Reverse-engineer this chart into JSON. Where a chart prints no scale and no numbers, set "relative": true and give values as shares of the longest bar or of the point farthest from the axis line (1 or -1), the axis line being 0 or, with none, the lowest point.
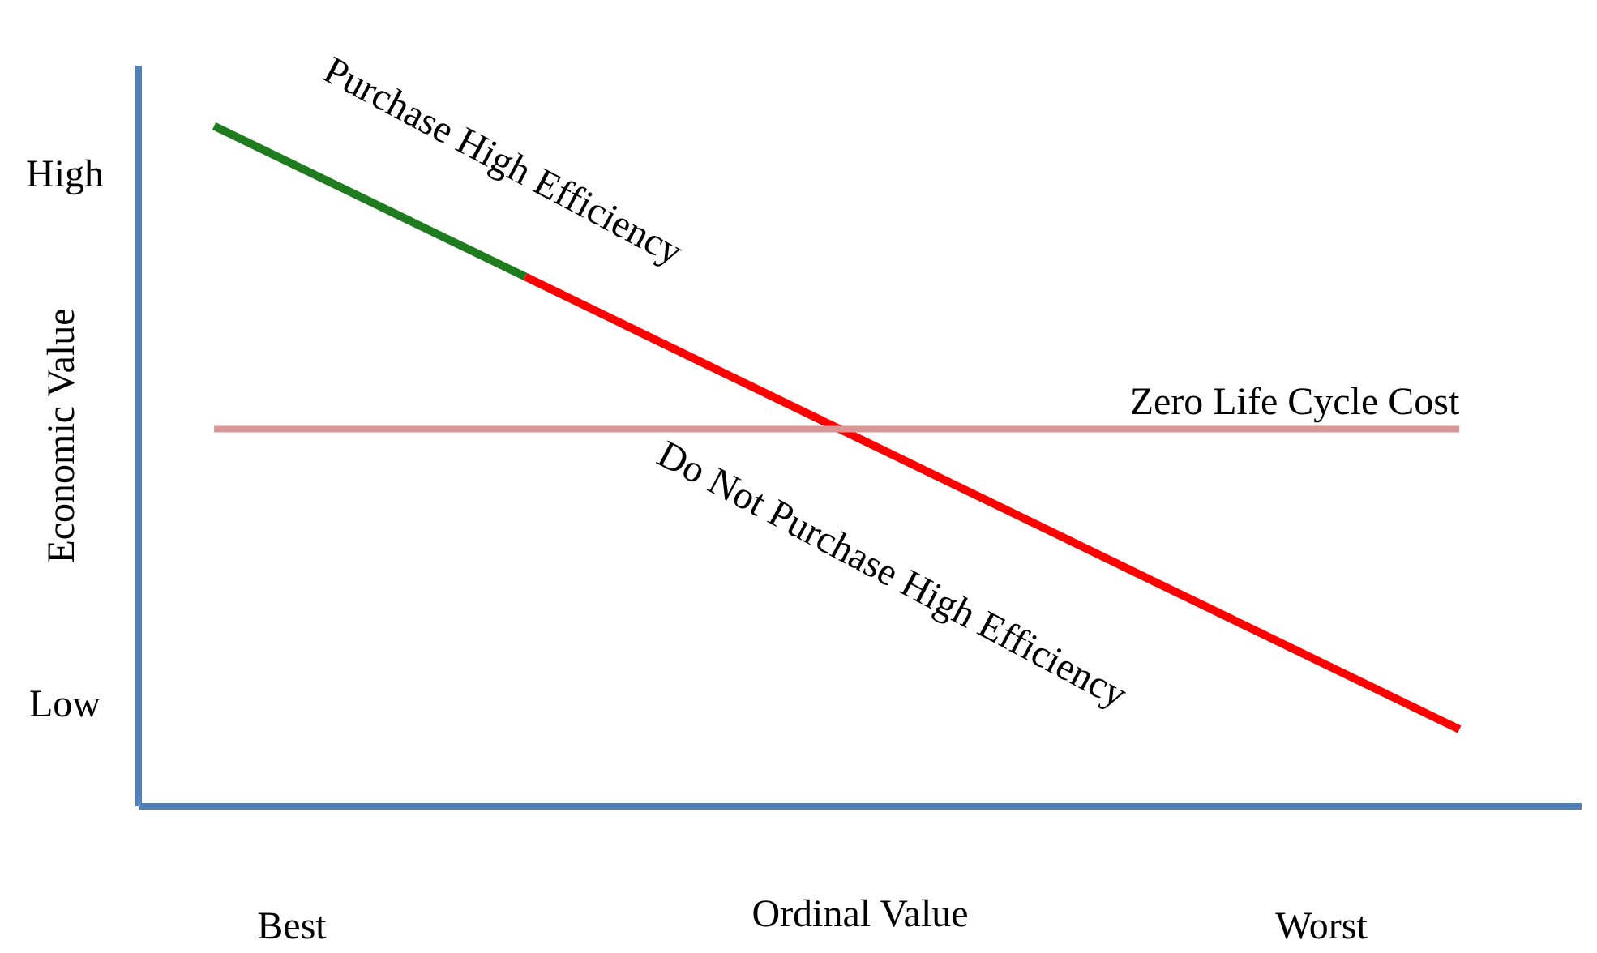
{
  "chart_data": {
    "type": "line",
    "relative": true,
    "xlabel": "Ordinal Value",
    "ylabel": "Economic Value",
    "categories": [
      null,
      null,
      null,
      null,
      null
    ],
    "series": [
      {
        "color": "#1e7b1e",
        "values": [
          1,
          0.778,
          null,
          null,
          null
        ]
      },
      {
        "color": "#ff0000",
        "values": [
          null,
          0.778,
          0.556,
          0.334,
          0.112
        ]
      }
    ],
    "ref_lines": [
      {
        "axis": "y",
        "value": 0.554,
        "label": "Zero Life Cycle Cost",
        "color": "#d99694"
      }
    ],
    "annotations": [
      "Purchase High Efficiency",
      "Do Not Purchase High Efficiency",
      "High",
      "Low",
      "Best",
      "Worst"
    ],
    "grid": false,
    "legend": false
  }
}
